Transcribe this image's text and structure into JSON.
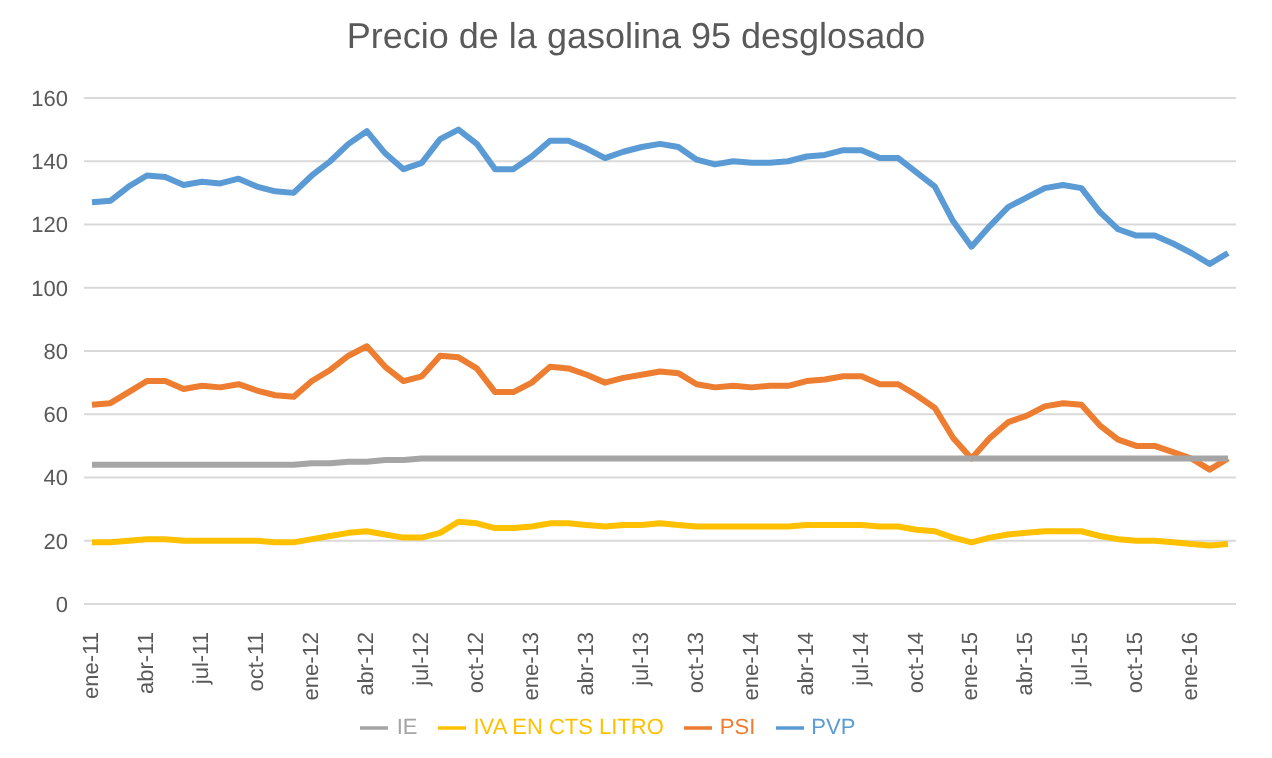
{
  "chart_data": {
    "type": "line",
    "title": "Precio de la gasolina 95 desglosado",
    "categories": [
      "ene-11",
      null,
      null,
      "abr-11",
      null,
      null,
      "jul-11",
      null,
      null,
      "oct-11",
      null,
      null,
      "ene-12",
      null,
      null,
      "abr-12",
      null,
      null,
      "jul-12",
      null,
      null,
      "oct-12",
      null,
      null,
      "ene-13",
      null,
      null,
      "abr-13",
      null,
      null,
      "jul-13",
      null,
      null,
      "oct-13",
      null,
      null,
      "ene-14",
      null,
      null,
      "abr-14",
      null,
      null,
      "jul-14",
      null,
      null,
      "oct-14",
      null,
      null,
      "ene-15",
      null,
      null,
      "abr-15",
      null,
      null,
      "jul-15",
      null,
      null,
      "oct-15",
      null,
      null,
      "ene-16",
      null,
      null
    ],
    "series": [
      {
        "name": "PVP",
        "color": "#5b9bd5",
        "values": [
          127,
          127.5,
          132,
          135.5,
          135,
          132.5,
          133.5,
          133,
          134.5,
          132,
          130.5,
          130,
          135.5,
          140,
          145.5,
          149.5,
          142.5,
          137.5,
          139.5,
          147,
          150,
          145.5,
          137.5,
          137.5,
          141.5,
          146.5,
          146.5,
          144,
          141,
          143,
          144.5,
          145.5,
          144.5,
          140.5,
          139,
          140,
          139.5,
          139.5,
          140,
          141.5,
          142,
          143.5,
          143.5,
          141,
          141,
          136.5,
          132,
          121,
          113,
          119.5,
          125.5,
          128.5,
          131.5,
          132.5,
          131.5,
          124,
          118.5,
          116.5,
          116.5,
          114,
          111,
          107.5,
          111
        ]
      },
      {
        "name": "PSI",
        "color": "#ed7d31",
        "values": [
          63,
          63.5,
          67,
          70.5,
          70.5,
          68,
          69,
          68.5,
          69.5,
          67.5,
          66,
          65.5,
          70.5,
          74,
          78.5,
          81.5,
          75,
          70.5,
          72,
          78.5,
          78,
          74.5,
          67,
          67,
          70,
          75,
          74.5,
          72.5,
          70,
          71.5,
          72.5,
          73.5,
          73,
          69.5,
          68.5,
          69,
          68.5,
          69,
          69,
          70.5,
          71,
          72,
          72,
          69.5,
          69.5,
          66,
          62,
          52.5,
          46,
          52.5,
          57.5,
          59.5,
          62.5,
          63.5,
          63,
          56.5,
          52,
          50,
          50,
          48,
          46,
          42.5,
          46
        ]
      },
      {
        "name": "IE",
        "color": "#a5a5a5",
        "values": [
          44,
          44,
          44,
          44,
          44,
          44,
          44,
          44,
          44,
          44,
          44,
          44,
          44.5,
          44.5,
          45,
          45,
          45.5,
          45.5,
          46,
          46,
          46,
          46,
          46,
          46,
          46,
          46,
          46,
          46,
          46,
          46,
          46,
          46,
          46,
          46,
          46,
          46,
          46,
          46,
          46,
          46,
          46,
          46,
          46,
          46,
          46,
          46,
          46,
          46,
          46,
          46,
          46,
          46,
          46,
          46,
          46,
          46,
          46,
          46,
          46,
          46,
          46,
          46,
          46
        ]
      },
      {
        "name": "IVA EN CTS LITRO",
        "color": "#ffc000",
        "values": [
          19.5,
          19.5,
          20,
          20.5,
          20.5,
          20,
          20,
          20,
          20,
          20,
          19.5,
          19.5,
          20.5,
          21.5,
          22.5,
          23,
          22,
          21,
          21,
          22.5,
          26,
          25.5,
          24,
          24,
          24.5,
          25.5,
          25.5,
          25,
          24.5,
          25,
          25,
          25.5,
          25,
          24.5,
          24.5,
          24.5,
          24.5,
          24.5,
          24.5,
          25,
          25,
          25,
          25,
          24.5,
          24.5,
          23.5,
          23,
          21,
          19.5,
          21,
          22,
          22.5,
          23,
          23,
          23,
          21.5,
          20.5,
          20,
          20,
          19.5,
          19,
          18.5,
          19
        ]
      }
    ],
    "ylim": [
      0,
      160
    ],
    "yticks": [
      0,
      20,
      40,
      60,
      80,
      100,
      120,
      140,
      160
    ],
    "grid": "y",
    "legend": "bottom",
    "marker": "none",
    "line_style": "solid"
  }
}
